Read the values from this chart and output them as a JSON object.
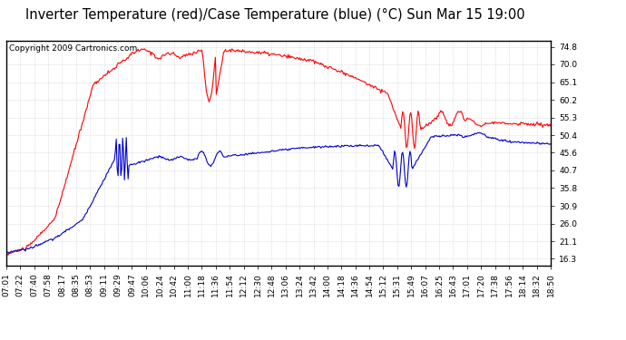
{
  "title": "Inverter Temperature (red)/Case Temperature (blue) (°C) Sun Mar 15 19:00",
  "copyright": "Copyright 2009 Cartronics.com",
  "background_color": "#ffffff",
  "plot_bg_color": "#ffffff",
  "grid_color": "#c8c8c8",
  "red_color": "#ff0000",
  "blue_color": "#0000cc",
  "yticks": [
    16.3,
    21.1,
    26.0,
    30.9,
    35.8,
    40.7,
    45.6,
    50.4,
    55.3,
    60.2,
    65.1,
    70.0,
    74.8
  ],
  "ymin": 14.5,
  "ymax": 76.5,
  "xtick_labels": [
    "07:01",
    "07:22",
    "07:40",
    "07:58",
    "08:17",
    "08:35",
    "08:53",
    "09:11",
    "09:29",
    "09:47",
    "10:06",
    "10:24",
    "10:42",
    "11:00",
    "11:18",
    "11:36",
    "11:54",
    "12:12",
    "12:30",
    "12:48",
    "13:06",
    "13:24",
    "13:42",
    "14:00",
    "14:18",
    "14:36",
    "14:54",
    "15:12",
    "15:31",
    "15:49",
    "16:07",
    "16:25",
    "16:43",
    "17:01",
    "17:20",
    "17:38",
    "17:56",
    "18:14",
    "18:32",
    "18:50"
  ],
  "title_fontsize": 10.5,
  "tick_fontsize": 6.5,
  "copyright_fontsize": 6.5
}
